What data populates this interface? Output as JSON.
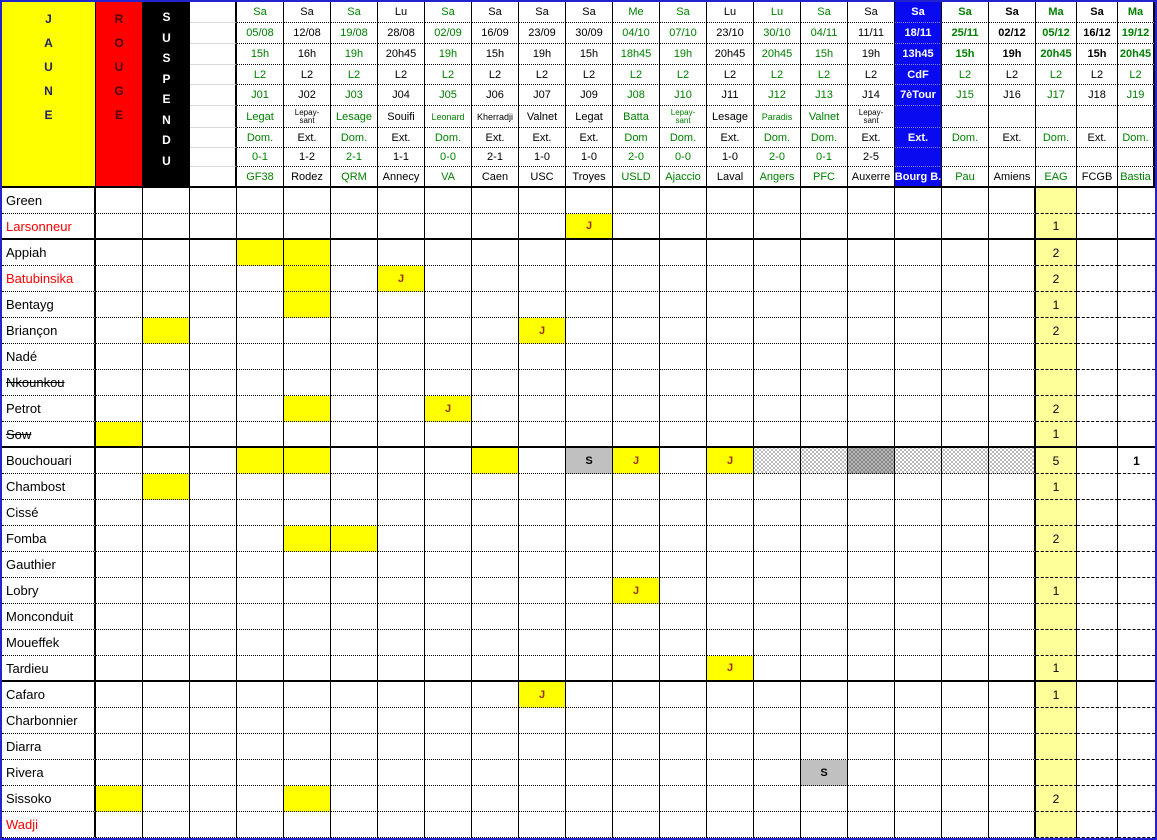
{
  "palette": {
    "outer_border": "#2323cf",
    "green_text": "#008000",
    "red_text": "#ff0000",
    "cup_blue": "#0a0af0",
    "card_yellow": "#ffff00",
    "total_yellow_bg": "#ffff99",
    "suspension_grey": "#c0c0c0",
    "j_letter": "#993300",
    "rouge_red": "#ff0000",
    "suspendu_black": "#000000"
  },
  "totals_header": {
    "jaune_label": "JAUNE",
    "rouge_label": "ROUGE",
    "suspendu_label": "SUSPENDU"
  },
  "columns": [
    {
      "day": "Sa",
      "date": "05/08",
      "time": "15h",
      "comp": "L2",
      "round": "J01",
      "referee": "Legat",
      "venue": "Dom.",
      "score": "0-1",
      "opponent": "GF38",
      "style": "green"
    },
    {
      "day": "Sa",
      "date": "12/08",
      "time": "16h",
      "comp": "L2",
      "round": "J02",
      "referee": "Lepay-sant",
      "venue": "Ext.",
      "score": "1-2",
      "opponent": "Rodez",
      "style": "black"
    },
    {
      "day": "Sa",
      "date": "19/08",
      "time": "19h",
      "comp": "L2",
      "round": "J03",
      "referee": "Lesage",
      "venue": "Dom.",
      "score": "2-1",
      "opponent": "QRM",
      "style": "green"
    },
    {
      "day": "Lu",
      "date": "28/08",
      "time": "20h45",
      "comp": "L2",
      "round": "J04",
      "referee": "Souifi",
      "venue": "Ext.",
      "score": "1-1",
      "opponent": "Annecy",
      "style": "black"
    },
    {
      "day": "Sa",
      "date": "02/09",
      "time": "19h",
      "comp": "L2",
      "round": "J05",
      "referee": "Leonard",
      "venue": "Dom.",
      "score": "0-0",
      "opponent": "VA",
      "style": "green"
    },
    {
      "day": "Sa",
      "date": "16/09",
      "time": "15h",
      "comp": "L2",
      "round": "J06",
      "referee": "Kherradji",
      "venue": "Ext.",
      "score": "2-1",
      "opponent": "Caen",
      "style": "black"
    },
    {
      "day": "Sa",
      "date": "23/09",
      "time": "19h",
      "comp": "L2",
      "round": "J07",
      "referee": "Valnet",
      "venue": "Ext.",
      "score": "1-0",
      "opponent": "USC",
      "style": "black"
    },
    {
      "day": "Sa",
      "date": "30/09",
      "time": "15h",
      "comp": "L2",
      "round": "J09",
      "referee": "Legat",
      "venue": "Ext.",
      "score": "1-0",
      "opponent": "Troyes",
      "style": "black"
    },
    {
      "day": "Me",
      "date": "04/10",
      "time": "18h45",
      "comp": "L2",
      "round": "J08",
      "referee": "Batta",
      "venue": "Dom",
      "score": "2-0",
      "opponent": "USLD",
      "style": "green"
    },
    {
      "day": "Sa",
      "date": "07/10",
      "time": "19h",
      "comp": "L2",
      "round": "J10",
      "referee": "Lepay-sant",
      "venue": "Dom.",
      "score": "0-0",
      "opponent": "Ajaccio",
      "style": "green"
    },
    {
      "day": "Lu",
      "date": "23/10",
      "time": "20h45",
      "comp": "L2",
      "round": "J11",
      "referee": "Lesage",
      "venue": "Ext.",
      "score": "1-0",
      "opponent": "Laval",
      "style": "black"
    },
    {
      "day": "Lu",
      "date": "30/10",
      "time": "20h45",
      "comp": "L2",
      "round": "J12",
      "referee": "Paradis",
      "venue": "Dom.",
      "score": "2-0",
      "opponent": "Angers",
      "style": "green"
    },
    {
      "day": "Sa",
      "date": "04/11",
      "time": "15h",
      "comp": "L2",
      "round": "J13",
      "referee": "Valnet",
      "venue": "Dom.",
      "score": "0-1",
      "opponent": "PFC",
      "style": "green"
    },
    {
      "day": "Sa",
      "date": "11/11",
      "time": "19h",
      "comp": "L2",
      "round": "J14",
      "referee": "Lepay-sant",
      "venue": "Ext.",
      "score": "2-5",
      "opponent": "Auxerre",
      "style": "black"
    },
    {
      "day": "Sa",
      "date": "18/11",
      "time": "13h45",
      "comp": "CdF",
      "round": "7èTour",
      "referee": "",
      "venue": "Ext.",
      "score": "",
      "opponent": "Bourg B.",
      "style": "blue"
    },
    {
      "day": "Sa",
      "date": "25/11",
      "time": "15h",
      "comp": "L2",
      "round": "J15",
      "referee": "",
      "venue": "Dom.",
      "score": "",
      "opponent": "Pau",
      "style": "green-bold"
    },
    {
      "day": "Sa",
      "date": "02/12",
      "time": "19h",
      "comp": "L2",
      "round": "J16",
      "referee": "",
      "venue": "Ext.",
      "score": "",
      "opponent": "Amiens",
      "style": "black-bold"
    },
    {
      "day": "Ma",
      "date": "05/12",
      "time": "20h45",
      "comp": "L2",
      "round": "J17",
      "referee": "",
      "venue": "Dom.",
      "score": "",
      "opponent": "EAG",
      "style": "green-bold"
    },
    {
      "day": "Sa",
      "date": "16/12",
      "time": "15h",
      "comp": "L2",
      "round": "J18",
      "referee": "",
      "venue": "Ext.",
      "score": "",
      "opponent": "FCGB",
      "style": "black-bold"
    },
    {
      "day": "Ma",
      "date": "19/12",
      "time": "20h45",
      "comp": "L2",
      "round": "J19",
      "referee": "",
      "venue": "Dom.",
      "score": "",
      "opponent": "Bastia",
      "style": "green-bold"
    }
  ],
  "players": [
    {
      "name": "Green",
      "jaune": "",
      "rouge": "",
      "suspendu": "",
      "marks": {}
    },
    {
      "name": "Larsonneur",
      "color": "red",
      "jaune": "1",
      "rouge": "",
      "suspendu": "",
      "marks": {
        "11": "J"
      },
      "group_end": true
    },
    {
      "name": "Appiah",
      "jaune": "2",
      "rouge": "",
      "suspendu": "",
      "marks": {
        "4": "Y",
        "5": "Y"
      }
    },
    {
      "name": "Batubinsika",
      "color": "red",
      "jaune": "2",
      "rouge": "",
      "suspendu": "",
      "marks": {
        "5": "Y",
        "7": "J"
      }
    },
    {
      "name": "Bentayg",
      "jaune": "1",
      "rouge": "",
      "suspendu": "",
      "marks": {
        "5": "Y"
      }
    },
    {
      "name": "Briançon",
      "jaune": "2",
      "rouge": "",
      "suspendu": "",
      "marks": {
        "2": "Y",
        "10": "J"
      }
    },
    {
      "name": "Nadé",
      "jaune": "",
      "rouge": "",
      "suspendu": "",
      "marks": {}
    },
    {
      "name": "Nkounkou",
      "strike": true,
      "jaune": "",
      "rouge": "",
      "suspendu": "",
      "marks": {}
    },
    {
      "name": "Petrot",
      "jaune": "2",
      "rouge": "",
      "suspendu": "",
      "marks": {
        "5": "Y",
        "8": "J"
      }
    },
    {
      "name": "Sow",
      "strike": true,
      "jaune": "1",
      "rouge": "",
      "suspendu": "",
      "marks": {
        "1": "Y"
      },
      "group_end": true
    },
    {
      "name": "Bouchouari",
      "jaune": "5",
      "rouge": "",
      "suspendu": "1",
      "marks": {
        "4": "Y",
        "5": "Y",
        "9": "Y",
        "11": "S",
        "12": "J",
        "14": "J",
        "15": "D",
        "16": "D",
        "17": "DG",
        "18": "D",
        "19": "D",
        "20": "D"
      }
    },
    {
      "name": "Chambost",
      "jaune": "1",
      "rouge": "",
      "suspendu": "",
      "marks": {
        "2": "Y"
      }
    },
    {
      "name": "Cissé",
      "jaune": "",
      "rouge": "",
      "suspendu": "",
      "marks": {}
    },
    {
      "name": "Fomba",
      "jaune": "2",
      "rouge": "",
      "suspendu": "",
      "marks": {
        "5": "Y",
        "6": "Y"
      }
    },
    {
      "name": "Gauthier",
      "jaune": "",
      "rouge": "",
      "suspendu": "",
      "marks": {}
    },
    {
      "name": "Lobry",
      "jaune": "1",
      "rouge": "",
      "suspendu": "",
      "marks": {
        "12": "J"
      }
    },
    {
      "name": "Monconduit",
      "jaune": "",
      "rouge": "",
      "suspendu": "",
      "marks": {}
    },
    {
      "name": "Moueffek",
      "jaune": "",
      "rouge": "",
      "suspendu": "",
      "marks": {}
    },
    {
      "name": "Tardieu",
      "jaune": "1",
      "rouge": "",
      "suspendu": "",
      "marks": {
        "14": "J"
      },
      "group_end": true
    },
    {
      "name": "Cafaro",
      "jaune": "1",
      "rouge": "",
      "suspendu": "",
      "marks": {
        "10": "J"
      }
    },
    {
      "name": "Charbonnier",
      "jaune": "",
      "rouge": "",
      "suspendu": "",
      "marks": {}
    },
    {
      "name": "Diarra",
      "jaune": "",
      "rouge": "",
      "suspendu": "",
      "marks": {}
    },
    {
      "name": "Rivera",
      "jaune": "",
      "rouge": "",
      "suspendu": "",
      "marks": {
        "16": "S"
      }
    },
    {
      "name": "Sissoko",
      "jaune": "2",
      "rouge": "",
      "suspendu": "",
      "marks": {
        "1": "Y",
        "5": "Y"
      }
    },
    {
      "name": "Wadji",
      "color": "red",
      "jaune": "",
      "rouge": "",
      "suspendu": "",
      "marks": {}
    }
  ],
  "marks_legend": {
    "Y": "yellow-card",
    "J": "yellow-card-booked",
    "S": "suspended",
    "D": "pending-dotted",
    "DG": "pending-dotted-grey"
  }
}
